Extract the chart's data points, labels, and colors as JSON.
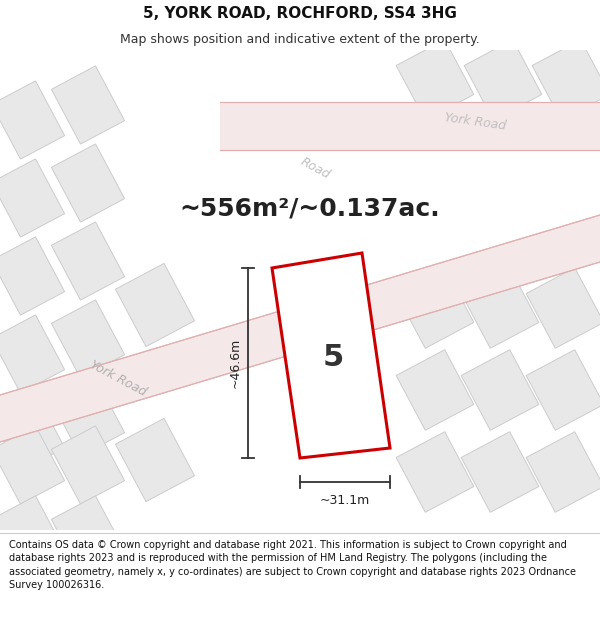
{
  "title": "5, YORK ROAD, ROCHFORD, SS4 3HG",
  "subtitle": "Map shows position and indicative extent of the property.",
  "area_text": "~556m²/~0.137ac.",
  "property_number": "5",
  "dim_width": "~31.1m",
  "dim_height": "~46.6m",
  "road_label1": "York Road",
  "road_label2": "York Road",
  "road_label3": "Road",
  "footer": "Contains OS data © Crown copyright and database right 2021. This information is subject to Crown copyright and database rights 2023 and is reproduced with the permission of HM Land Registry. The polygons (including the associated geometry, namely x, y co-ordinates) are subject to Crown copyright and database rights 2023 Ordnance Survey 100026316.",
  "bg_color": "#f5f5f5",
  "map_bg": "#ffffff",
  "road_color": "#f5e8e8",
  "building_color": "#e8e8e8",
  "building_edge": "#cccccc",
  "road_line_color": "#e0b0b0",
  "property_line_color": "#cc0000",
  "dim_color": "#222222",
  "title_fontsize": 11,
  "subtitle_fontsize": 9,
  "area_fontsize": 18,
  "footer_fontsize": 7
}
